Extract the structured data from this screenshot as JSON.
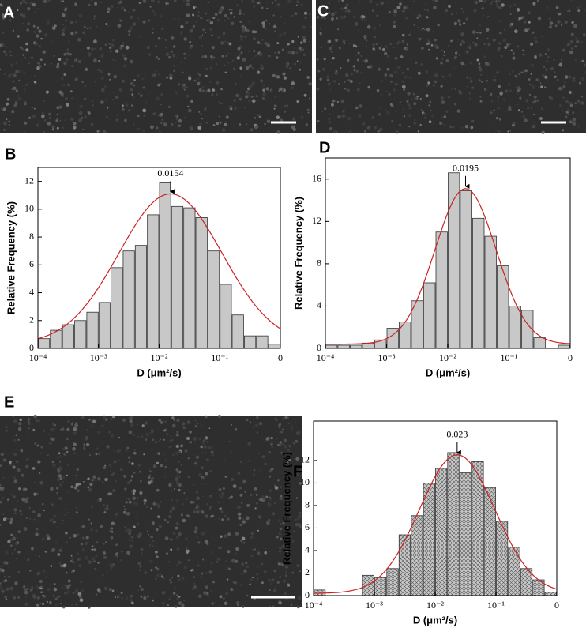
{
  "image_panels": [
    "A",
    "C",
    "E"
  ],
  "chart_data": [
    {
      "type": "histogram",
      "panel": "B",
      "xlabel": "D (μm²/s)",
      "ylabel": "Relative Frequency (%)",
      "xscale": "log",
      "bar_color": "#c8c8c8",
      "bar_pattern": "solid",
      "bins": [
        0.0001,
        0.000158,
        0.000251,
        0.000398,
        0.000631,
        0.001,
        0.00158,
        0.00251,
        0.00398,
        0.00631,
        0.01,
        0.0158,
        0.0251,
        0.0398,
        0.0631,
        0.1,
        0.158,
        0.251,
        0.398,
        0.631,
        1
      ],
      "values": [
        0.7,
        1.3,
        1.7,
        2.0,
        2.6,
        3.3,
        5.8,
        7.0,
        7.4,
        9.6,
        11.9,
        10.2,
        10.1,
        9.4,
        7.0,
        4.6,
        2.4,
        0.9,
        0.9,
        0.3
      ],
      "fit": {
        "center": 0.0154,
        "amplitude": 10.8,
        "sigma": 0.85,
        "offset": 0.3,
        "color": "#cc2222"
      },
      "xlim": [
        0.0001,
        1
      ],
      "ylim": [
        0,
        13
      ],
      "xticks": [
        {
          "value": 0.0001,
          "label": "10⁻⁴"
        },
        {
          "value": 0.001,
          "label": "10⁻³"
        },
        {
          "value": 0.01,
          "label": "10⁻²"
        },
        {
          "value": 0.1,
          "label": "10⁻¹"
        },
        {
          "value": 1,
          "label": "0"
        }
      ],
      "yticks": [
        0,
        2,
        4,
        6,
        8,
        10,
        12
      ]
    },
    {
      "type": "histogram",
      "panel": "D",
      "xlabel": "D (μm²/s)",
      "ylabel": "Relative Frequency (%)",
      "xscale": "log",
      "bar_color": "#c8c8c8",
      "bar_pattern": "solid",
      "bins": [
        0.0001,
        0.000158,
        0.000251,
        0.000398,
        0.000631,
        0.001,
        0.00158,
        0.00251,
        0.00398,
        0.00631,
        0.01,
        0.0158,
        0.0251,
        0.0398,
        0.0631,
        0.1,
        0.158,
        0.251,
        0.398,
        0.631,
        1
      ],
      "values": [
        0.3,
        0.3,
        0.3,
        0.5,
        0.8,
        1.9,
        2.5,
        4.5,
        6.2,
        11.0,
        16.6,
        14.9,
        12.3,
        10.6,
        7.8,
        4.0,
        3.6,
        1.0,
        0,
        0.3
      ],
      "fit": {
        "center": 0.0195,
        "amplitude": 14.7,
        "sigma": 0.5,
        "offset": 0.4,
        "color": "#cc2222"
      },
      "xlim": [
        0.0001,
        1
      ],
      "ylim": [
        0,
        18
      ],
      "xticks": [
        {
          "value": 0.0001,
          "label": "10⁻⁴"
        },
        {
          "value": 0.001,
          "label": "10⁻³"
        },
        {
          "value": 0.01,
          "label": "10⁻²"
        },
        {
          "value": 0.1,
          "label": "10⁻¹"
        },
        {
          "value": 1,
          "label": "0"
        }
      ],
      "yticks": [
        0,
        4,
        8,
        12,
        16
      ]
    },
    {
      "type": "histogram",
      "panel": "F",
      "xlabel": "D (μm²/s)",
      "ylabel": "Relative Frequency (%)",
      "xscale": "log",
      "bar_color": "#c8c8c8",
      "bar_pattern": "crosshatch",
      "bins": [
        0.0001,
        0.000158,
        0.000251,
        0.000398,
        0.000631,
        0.001,
        0.00158,
        0.00251,
        0.00398,
        0.00631,
        0.01,
        0.0158,
        0.0251,
        0.0398,
        0.0631,
        0.1,
        0.158,
        0.251,
        0.398,
        0.631,
        1
      ],
      "values": [
        0.5,
        0,
        0,
        0,
        1.8,
        1.6,
        2.4,
        5.4,
        7.1,
        10.0,
        11.3,
        12.7,
        10.9,
        11.9,
        9.6,
        6.6,
        4.3,
        2.4,
        1.4,
        0.3
      ],
      "fit": {
        "center": 0.023,
        "amplitude": 12.3,
        "sigma": 0.62,
        "offset": 0.2,
        "color": "#cc2222"
      },
      "xlim": [
        0.0001,
        1
      ],
      "ylim": [
        0,
        15.5
      ],
      "xticks": [
        {
          "value": 0.0001,
          "label": "10⁻⁴"
        },
        {
          "value": 0.001,
          "label": "10⁻³"
        },
        {
          "value": 0.01,
          "label": "10⁻²"
        },
        {
          "value": 0.1,
          "label": "10⁻¹"
        },
        {
          "value": 1,
          "label": "0"
        }
      ],
      "yticks": [
        0,
        2,
        4,
        6,
        8,
        10,
        12
      ]
    }
  ]
}
